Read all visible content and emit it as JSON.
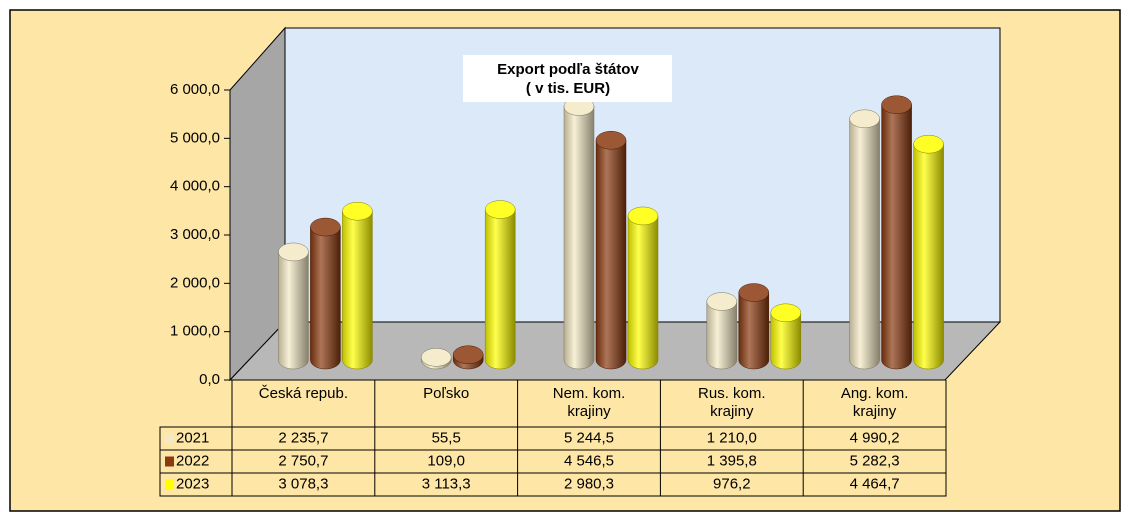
{
  "chart_data": {
    "type": "bar3d",
    "title": "Export podľa štátov",
    "subtitle": "( v tis.  EUR)",
    "categories": [
      "Česká repub.",
      "Poľsko",
      "Nem. kom. krajiny",
      "Rus. kom. krajiny",
      "Ang. kom. krajiny"
    ],
    "series": [
      {
        "name": "2021",
        "color": "#f3e9c4",
        "values": [
          2235.7,
          55.5,
          5244.5,
          1210.0,
          4990.2
        ],
        "value_labels": [
          "2 235,7",
          "55,5",
          "5 244,5",
          "1 210,0",
          "4 990,2"
        ]
      },
      {
        "name": "2022",
        "color": "#8b3a10",
        "values": [
          2750.7,
          109.0,
          4546.5,
          1395.8,
          5282.3
        ],
        "value_labels": [
          "2 750,7",
          "109,0",
          "4 546,5",
          "1 395,8",
          "5 282,3"
        ]
      },
      {
        "name": "2023",
        "color": "#ffff00",
        "values": [
          3078.3,
          3113.3,
          2980.3,
          976.2,
          4464.7
        ],
        "value_labels": [
          "3 078,3",
          "3 113,3",
          "2 980,3",
          "976,2",
          "4 464,7"
        ]
      }
    ],
    "ylim": [
      0,
      6000
    ],
    "yticks": [
      {
        "value": 0,
        "label": "0,0"
      },
      {
        "value": 1000,
        "label": "1 000,0"
      },
      {
        "value": 2000,
        "label": "2 000,0"
      },
      {
        "value": 3000,
        "label": "3 000,0"
      },
      {
        "value": 4000,
        "label": "4 000,0"
      },
      {
        "value": 5000,
        "label": "5 000,0"
      },
      {
        "value": 6000,
        "label": "6 000,0"
      }
    ]
  }
}
